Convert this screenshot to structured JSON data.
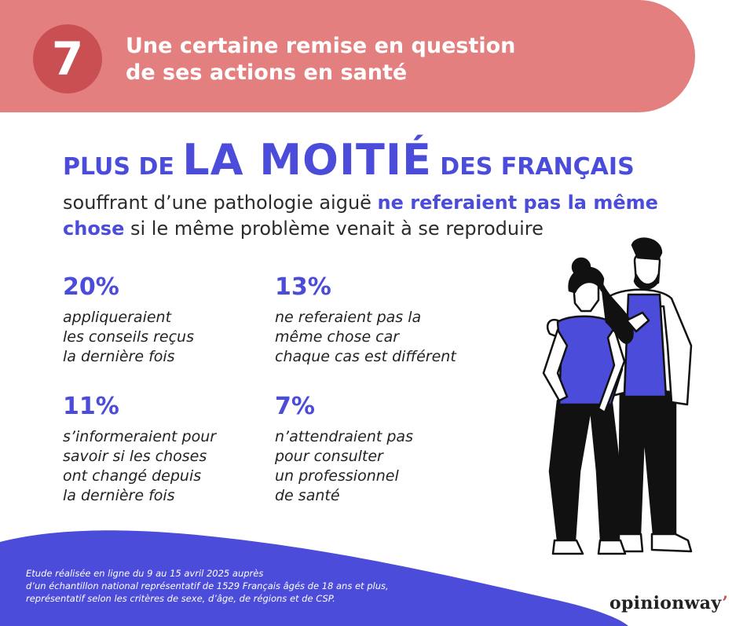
{
  "header": {
    "number": "7",
    "title_line1": "Une certaine remise en question",
    "title_line2": "de ses actions en santé"
  },
  "headline": {
    "prefix": "PLUS DE ",
    "emphasis": "LA MOITIÉ",
    "suffix": " DES FRANÇAIS"
  },
  "subheadline": {
    "part1": "souffrant d’une pathologie aiguë ",
    "highlight": "ne referaient pas la même chose",
    "part2": " si le même problème venait à se reproduire"
  },
  "stats": [
    {
      "value": "20%",
      "lines": [
        "appliqueraient",
        "les conseils reçus",
        "la dernière fois"
      ]
    },
    {
      "value": "13%",
      "lines": [
        "ne referaient pas la",
        "même chose car",
        "chaque cas est différent"
      ]
    },
    {
      "value": "11%",
      "lines": [
        "s’informeraient pour",
        "savoir si les choses",
        "ont changé depuis",
        "la dernière fois"
      ]
    },
    {
      "value": "7%",
      "lines": [
        "n’attendraient pas",
        "pour consulter",
        "un professionnel",
        "de santé"
      ]
    }
  ],
  "footer": {
    "note_line1": "Etude réalisée en ligne du 9 au 15 avril 2025 auprès",
    "note_line2": "d’un échantillon national représentatif de 1529 Français âgés de 18 ans et plus,",
    "note_line3": "représentatif selon les critères de sexe, d’âge, de régions et de CSP.",
    "brand": "opinionway",
    "brand_mark": "’"
  },
  "colors": {
    "banner": "#e47f7f",
    "badge": "#c94f53",
    "accent": "#4b4cd9",
    "footer": "#4b4cd9"
  },
  "illustration": "couple-embracing-illustration"
}
